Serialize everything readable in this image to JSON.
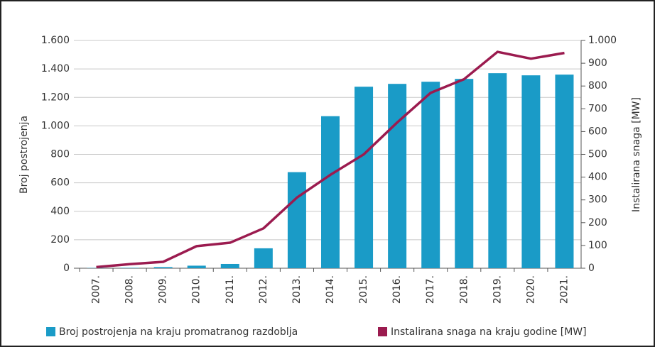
{
  "chart_data": {
    "type": "bar_line",
    "categories": [
      "2007.",
      "2008.",
      "2009.",
      "2010.",
      "2011.",
      "2012.",
      "2013.",
      "2014.",
      "2015.",
      "2016.",
      "2017.",
      "2018.",
      "2019.",
      "2020.",
      "2021."
    ],
    "series": [
      {
        "name": "Broj postrojenja na kraju promatranog razdoblja",
        "color": "#1a9bc7",
        "type": "bar",
        "axis": "y",
        "values": [
          2,
          3,
          8,
          18,
          30,
          140,
          675,
          1068,
          1275,
          1295,
          1310,
          1330,
          1370,
          1355,
          1360
        ]
      },
      {
        "name": "Instalirana snaga na kraju godine [MW]",
        "color": "#9b1b4f",
        "type": "line",
        "axis": "y2",
        "values": [
          5,
          18,
          28,
          97,
          112,
          175,
          310,
          410,
          500,
          640,
          770,
          830,
          950,
          920,
          945
        ]
      }
    ],
    "ylabel": "Broj postrojenja",
    "y2label": "Instalirana snaga [MW]",
    "ylim": [
      0,
      1600
    ],
    "yticks": [
      0,
      200,
      400,
      600,
      800,
      {
        "value": 1000,
        "label": "1.000"
      },
      {
        "value": 1200,
        "label": "1.200"
      },
      {
        "value": 1400,
        "label": "1.400"
      },
      {
        "value": 1600,
        "label": "1.600"
      }
    ],
    "y2lim": [
      0,
      1000
    ],
    "y2ticks": [
      0,
      100,
      200,
      300,
      400,
      500,
      600,
      700,
      800,
      900,
      {
        "value": 1000,
        "label": "1.000"
      }
    ],
    "grid": true,
    "legend": "bottom"
  }
}
